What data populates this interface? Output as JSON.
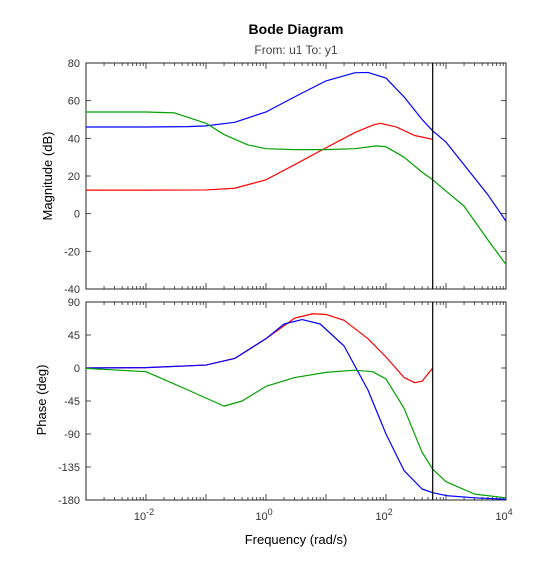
{
  "chart_data": {
    "type": "line",
    "title": "Bode Diagram",
    "subtitle": "From: u1  To: y1",
    "xlabel": "Frequency  (rad/s)",
    "x_scale": "log",
    "xlim": [
      0.001,
      10000
    ],
    "x_ticks": [
      {
        "value": 0.01,
        "base": "10",
        "exp": "-2"
      },
      {
        "value": 1,
        "base": "10",
        "exp": "0"
      },
      {
        "value": 100,
        "base": "10",
        "exp": "2"
      },
      {
        "value": 10000,
        "base": "10",
        "exp": "4"
      }
    ],
    "grid": false,
    "nyquist_line_x": 600,
    "colors": {
      "red": "#ff0000",
      "blue": "#0000ff",
      "green": "#00a000",
      "marker": "#000000"
    },
    "panels": [
      {
        "id": "magnitude",
        "ylabel": "Magnitude (dB)",
        "ylim": [
          -40,
          80
        ],
        "y_ticks": [
          -40,
          -20,
          0,
          20,
          40,
          60,
          80
        ],
        "series": [
          {
            "color": "blue",
            "points": [
              [
                0.001,
                46
              ],
              [
                0.01,
                46
              ],
              [
                0.05,
                46.2
              ],
              [
                0.1,
                46.6
              ],
              [
                0.3,
                48.5
              ],
              [
                1,
                54
              ],
              [
                3,
                62
              ],
              [
                10,
                70.5
              ],
              [
                30,
                74.8
              ],
              [
                50,
                75
              ],
              [
                100,
                72
              ],
              [
                200,
                62
              ],
              [
                400,
                50
              ],
              [
                600,
                44
              ],
              [
                1000,
                38
              ],
              [
                2000,
                26
              ],
              [
                5000,
                10
              ],
              [
                10000,
                -4
              ]
            ]
          },
          {
            "color": "red",
            "points": [
              [
                0.001,
                12.5
              ],
              [
                0.01,
                12.5
              ],
              [
                0.1,
                12.6
              ],
              [
                0.3,
                13.5
              ],
              [
                1,
                18
              ],
              [
                3,
                26
              ],
              [
                10,
                35
              ],
              [
                30,
                43
              ],
              [
                60,
                47
              ],
              [
                80,
                48
              ],
              [
                150,
                46
              ],
              [
                300,
                41.5
              ],
              [
                600,
                39.5
              ]
            ]
          },
          {
            "color": "green",
            "points": [
              [
                0.001,
                54
              ],
              [
                0.01,
                54
              ],
              [
                0.03,
                53.5
              ],
              [
                0.1,
                48
              ],
              [
                0.2,
                42
              ],
              [
                0.5,
                36.5
              ],
              [
                1,
                34.5
              ],
              [
                3,
                34
              ],
              [
                10,
                34
              ],
              [
                30,
                34.5
              ],
              [
                70,
                36
              ],
              [
                100,
                35.5
              ],
              [
                200,
                30
              ],
              [
                400,
                22
              ],
              [
                600,
                18
              ],
              [
                1000,
                12
              ],
              [
                2000,
                4
              ],
              [
                5000,
                -14
              ],
              [
                10000,
                -27
              ]
            ]
          }
        ]
      },
      {
        "id": "phase",
        "ylabel": "Phase (deg)",
        "ylim": [
          -180,
          90
        ],
        "y_ticks": [
          -180,
          -135,
          -90,
          -45,
          0,
          45,
          90
        ],
        "series": [
          {
            "color": "red",
            "points": [
              [
                0.001,
                0
              ],
              [
                0.01,
                0.5
              ],
              [
                0.1,
                4
              ],
              [
                0.3,
                13
              ],
              [
                1,
                40
              ],
              [
                3,
                68
              ],
              [
                6,
                74
              ],
              [
                10,
                73
              ],
              [
                20,
                65
              ],
              [
                50,
                40
              ],
              [
                100,
                15
              ],
              [
                200,
                -13
              ],
              [
                300,
                -20
              ],
              [
                400,
                -18
              ],
              [
                500,
                -8
              ],
              [
                600,
                0
              ]
            ]
          },
          {
            "color": "blue",
            "points": [
              [
                0.001,
                0
              ],
              [
                0.01,
                0.5
              ],
              [
                0.1,
                4
              ],
              [
                0.3,
                13
              ],
              [
                1,
                40
              ],
              [
                2,
                60
              ],
              [
                4,
                66
              ],
              [
                8,
                60
              ],
              [
                20,
                30
              ],
              [
                50,
                -30
              ],
              [
                100,
                -90
              ],
              [
                200,
                -140
              ],
              [
                400,
                -165
              ],
              [
                600,
                -170
              ],
              [
                1000,
                -174
              ],
              [
                3000,
                -177
              ],
              [
                10000,
                -179
              ]
            ]
          },
          {
            "color": "green",
            "points": [
              [
                0.001,
                -0.5
              ],
              [
                0.01,
                -5
              ],
              [
                0.05,
                -30
              ],
              [
                0.2,
                -52
              ],
              [
                0.4,
                -45
              ],
              [
                1,
                -25
              ],
              [
                3,
                -13
              ],
              [
                10,
                -6
              ],
              [
                30,
                -3
              ],
              [
                60,
                -5
              ],
              [
                100,
                -15
              ],
              [
                200,
                -55
              ],
              [
                400,
                -115
              ],
              [
                600,
                -138
              ],
              [
                1000,
                -155
              ],
              [
                3000,
                -172
              ],
              [
                10000,
                -177
              ]
            ]
          }
        ]
      }
    ]
  }
}
